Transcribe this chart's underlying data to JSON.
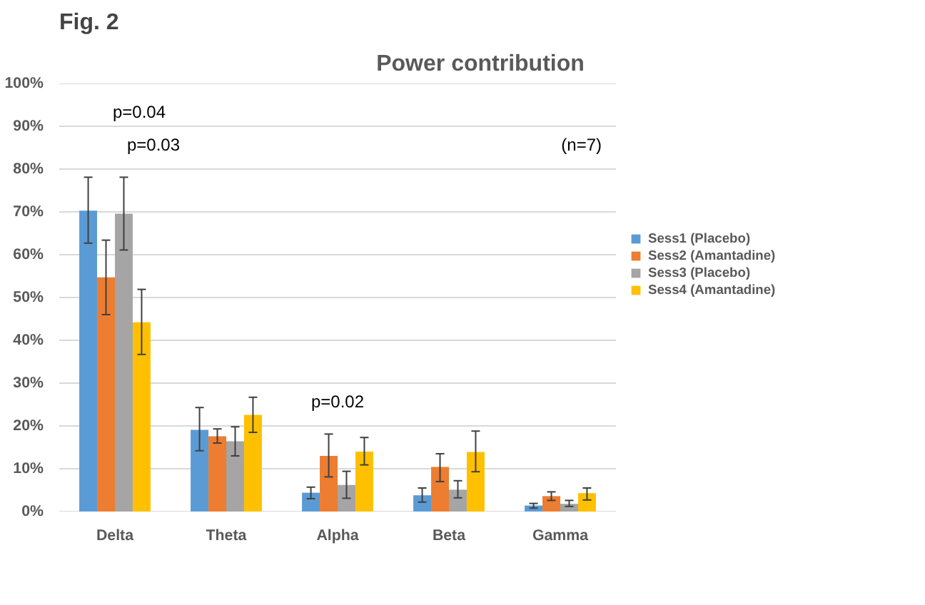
{
  "chart_data": {
    "type": "bar",
    "title": "Power contribution",
    "categories": [
      "Delta",
      "Theta",
      "Alpha",
      "Beta",
      "Gamma"
    ],
    "series": [
      {
        "name": "Sess1 (Placebo)",
        "color": "#5b9bd5",
        "values": [
          70.3,
          19.1,
          4.4,
          3.8,
          1.4
        ],
        "errors": [
          [
            62.7,
            78.1
          ],
          [
            14.2,
            24.3
          ],
          [
            3,
            5.7
          ],
          [
            2.2,
            5.5
          ],
          [
            0.8,
            1.9
          ]
        ]
      },
      {
        "name": "Sess2 (Amantadine)",
        "color": "#ed7d31",
        "values": [
          54.7,
          17.6,
          13,
          10.4,
          3.6
        ],
        "errors": [
          [
            46,
            63.4
          ],
          [
            16,
            19.3
          ],
          [
            8.1,
            18.1
          ],
          [
            7,
            13.5
          ],
          [
            2.6,
            4.6
          ]
        ]
      },
      {
        "name": "Sess3 (Placebo)",
        "color": "#a5a5a5",
        "values": [
          69.6,
          16.4,
          6.2,
          5.1,
          1.8
        ],
        "errors": [
          [
            61.1,
            78.1
          ],
          [
            13,
            19.8
          ],
          [
            3.1,
            9.4
          ],
          [
            3.2,
            7.2
          ],
          [
            1.2,
            2.6
          ]
        ]
      },
      {
        "name": "Sess4 (Amantadine)",
        "color": "#ffc000",
        "values": [
          44.2,
          22.6,
          14,
          13.9,
          4.3
        ],
        "errors": [
          [
            36.7,
            51.9
          ],
          [
            18.5,
            26.7
          ],
          [
            10.9,
            17.3
          ],
          [
            9.3,
            18.8
          ],
          [
            2.7,
            5.5
          ]
        ]
      }
    ],
    "ylim": [
      0,
      100
    ],
    "yticks": [
      {
        "value": 0,
        "label": "0%"
      },
      {
        "value": 10,
        "label": "10%"
      },
      {
        "value": 20,
        "label": "20%"
      },
      {
        "value": 30,
        "label": "30%"
      },
      {
        "value": 40,
        "label": "40%"
      },
      {
        "value": 50,
        "label": "50%"
      },
      {
        "value": 60,
        "label": "60%"
      },
      {
        "value": 70,
        "label": "70%"
      },
      {
        "value": 80,
        "label": "80%"
      },
      {
        "value": 90,
        "label": "90%"
      },
      {
        "value": 100,
        "label": "100%"
      }
    ],
    "grid": "y",
    "legend": "right",
    "annotations": [
      "Fig. 2",
      "p=0.04",
      "p=0.03",
      "p=0.02",
      "(n=7)"
    ]
  }
}
